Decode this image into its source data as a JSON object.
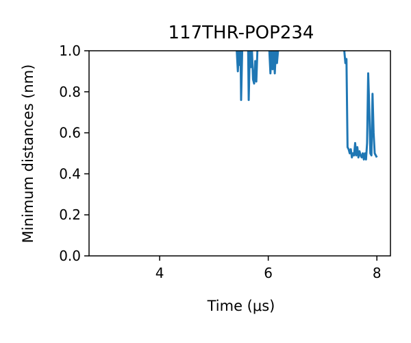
{
  "chart_data": {
    "type": "line",
    "title": "117THR-POP234",
    "xlabel": "Time (μs)",
    "ylabel": "Minimum distances (nm)",
    "xlim": [
      2.7,
      8.25
    ],
    "ylim": [
      0.0,
      1.0
    ],
    "xticks": [
      4,
      6,
      8
    ],
    "yticks": [
      0.0,
      0.2,
      0.4,
      0.6,
      0.8,
      1.0
    ],
    "xtick_labels": [
      "4",
      "6",
      "8"
    ],
    "ytick_labels": [
      "0.0",
      "0.2",
      "0.4",
      "0.6",
      "0.8",
      "1.0"
    ],
    "grid": false,
    "series_color": "#1f77b4",
    "series": [
      {
        "name": "",
        "segments": [
          [
            [
              5.42,
              1.0
            ],
            [
              5.44,
              0.9
            ],
            [
              5.46,
              1.0
            ],
            [
              5.48,
              0.93
            ],
            [
              5.49,
              1.0
            ],
            [
              5.5,
              0.76
            ],
            [
              5.52,
              1.0
            ],
            [
              5.53,
              1.0
            ]
          ],
          [
            [
              5.63,
              1.0
            ],
            [
              5.64,
              0.76
            ],
            [
              5.66,
              1.0
            ],
            [
              5.68,
              0.92
            ],
            [
              5.7,
              1.0
            ],
            [
              5.72,
              0.86
            ],
            [
              5.74,
              0.84
            ],
            [
              5.76,
              0.95
            ],
            [
              5.78,
              0.85
            ],
            [
              5.8,
              1.0
            ]
          ],
          [
            [
              6.02,
              1.0
            ],
            [
              6.04,
              0.89
            ],
            [
              6.06,
              1.0
            ],
            [
              6.08,
              0.91
            ],
            [
              6.1,
              1.0
            ],
            [
              6.12,
              0.89
            ],
            [
              6.14,
              1.0
            ],
            [
              6.16,
              0.94
            ],
            [
              6.18,
              1.0
            ]
          ],
          [
            [
              7.4,
              1.0
            ],
            [
              7.42,
              0.94
            ],
            [
              7.44,
              0.96
            ],
            [
              7.46,
              0.53
            ],
            [
              7.48,
              0.52
            ],
            [
              7.5,
              0.5
            ],
            [
              7.52,
              0.52
            ],
            [
              7.54,
              0.48
            ],
            [
              7.56,
              0.5
            ],
            [
              7.58,
              0.49
            ],
            [
              7.6,
              0.55
            ],
            [
              7.62,
              0.49
            ],
            [
              7.64,
              0.53
            ],
            [
              7.66,
              0.48
            ],
            [
              7.68,
              0.51
            ],
            [
              7.7,
              0.49
            ],
            [
              7.72,
              0.48
            ],
            [
              7.74,
              0.5
            ],
            [
              7.76,
              0.47
            ],
            [
              7.78,
              0.5
            ],
            [
              7.8,
              0.47
            ],
            [
              7.82,
              0.55
            ],
            [
              7.84,
              0.89
            ],
            [
              7.86,
              0.72
            ],
            [
              7.88,
              0.5
            ],
            [
              7.9,
              0.49
            ],
            [
              7.92,
              0.79
            ],
            [
              7.94,
              0.6
            ],
            [
              7.96,
              0.5
            ],
            [
              7.98,
              0.49
            ],
            [
              8.0,
              0.48
            ]
          ]
        ]
      }
    ]
  }
}
